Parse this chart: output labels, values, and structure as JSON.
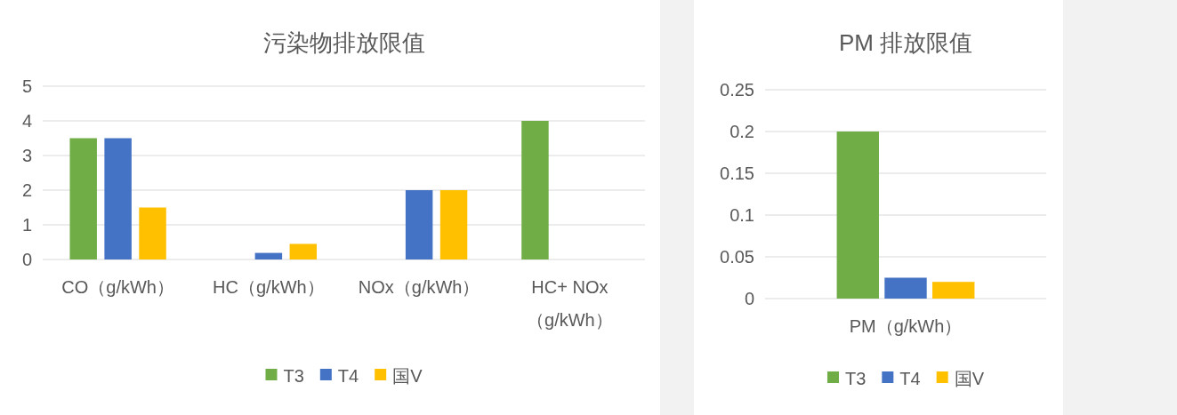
{
  "chart_data": [
    {
      "type": "bar",
      "title": "污染物排放限值",
      "categories": [
        "CO（g/kWh）",
        "HC（g/kWh）",
        "NOx（g/kWh）",
        "HC+ NOx（g/kWh）"
      ],
      "series": [
        {
          "name": "T3",
          "color": "#70ad47",
          "values": [
            3.5,
            null,
            null,
            4
          ]
        },
        {
          "name": "T4",
          "color": "#4472c4",
          "values": [
            3.5,
            0.19,
            2,
            null
          ]
        },
        {
          "name": "国V",
          "color": "#ffc000",
          "values": [
            1.5,
            0.45,
            2,
            null
          ]
        }
      ],
      "ylim": [
        0,
        5
      ],
      "yticks": [
        0,
        1,
        2,
        3,
        4,
        5
      ],
      "grid": "y",
      "legend": "bottom"
    },
    {
      "type": "bar",
      "title": "PM 排放限值",
      "categories": [
        "PM（g/kWh）"
      ],
      "series": [
        {
          "name": "T3",
          "color": "#70ad47",
          "values": [
            0.2
          ]
        },
        {
          "name": "T4",
          "color": "#4472c4",
          "values": [
            0.025
          ]
        },
        {
          "name": "国V",
          "color": "#ffc000",
          "values": [
            0.02
          ]
        }
      ],
      "ylim": [
        0,
        0.25
      ],
      "yticks": [
        0,
        0.05,
        0.1,
        0.15,
        0.2,
        0.25
      ],
      "grid": "y",
      "legend": "bottom"
    }
  ]
}
